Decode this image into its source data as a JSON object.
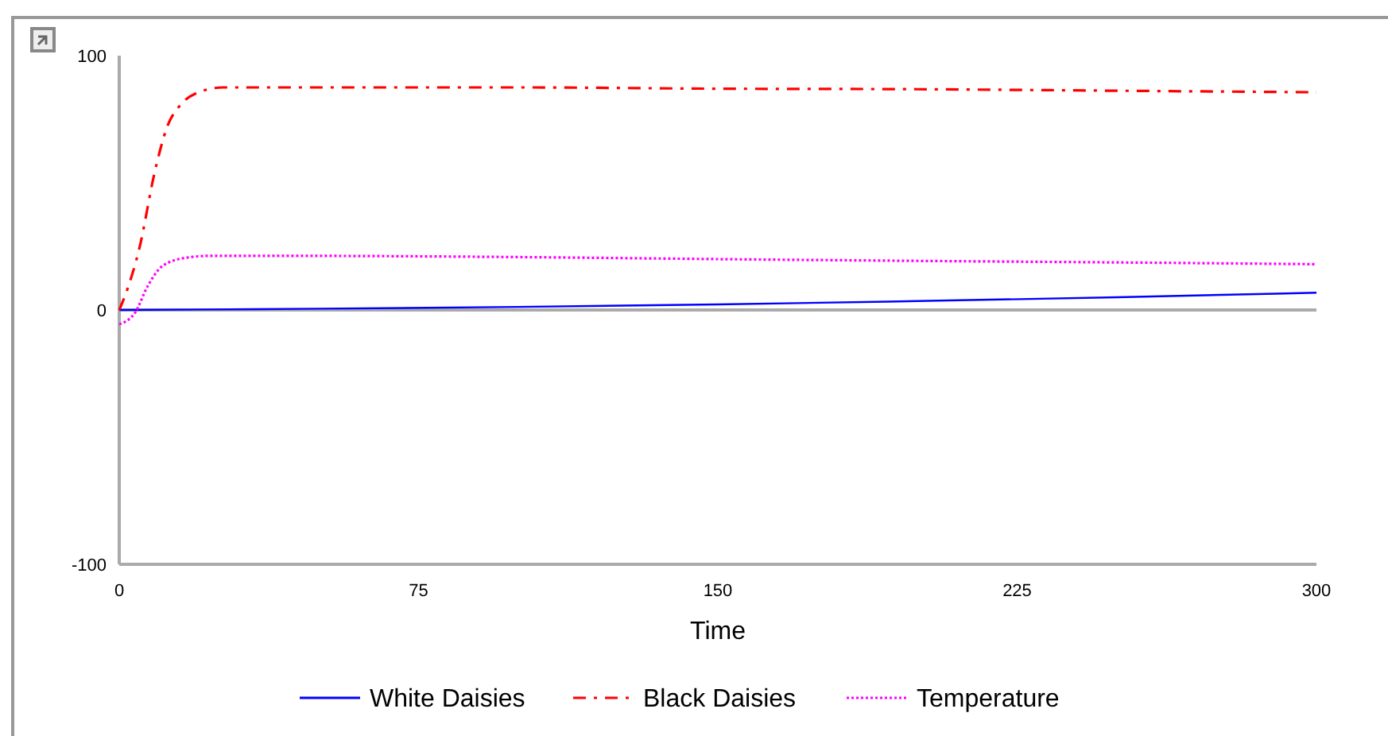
{
  "chart_data": {
    "type": "line",
    "xlabel": "Time",
    "xlim": [
      0,
      300
    ],
    "ylim": [
      -100,
      100
    ],
    "xticks": [
      0,
      75,
      150,
      225,
      300
    ],
    "yticks": [
      -100,
      0,
      100
    ],
    "grid": false,
    "legend": "bottom",
    "ref_lines": [
      {
        "axis": "y",
        "value": 0,
        "color": "#aaaaaa"
      }
    ],
    "series": [
      {
        "name": "White Daisies",
        "color": "#0000ff",
        "line_style": "solid",
        "x": [
          0,
          50,
          100,
          150,
          200,
          250,
          300
        ],
        "values": [
          0,
          0.5,
          1.2,
          2.2,
          3.5,
          5,
          6.8
        ]
      },
      {
        "name": "Black Daisies",
        "color": "#ff0000",
        "line_style": "dashdot",
        "x": [
          0,
          2,
          5,
          9,
          12,
          15,
          19,
          26,
          40,
          100,
          150,
          200,
          250,
          300
        ],
        "values": [
          0,
          8,
          24,
          55,
          72,
          80,
          85,
          87.5,
          87.5,
          87.5,
          87,
          86.8,
          86.2,
          85.6
        ]
      },
      {
        "name": "Temperature",
        "color": "#ff00ff",
        "line_style": "dotted",
        "x": [
          0,
          4,
          7,
          11,
          17,
          23,
          40,
          100,
          150,
          200,
          250,
          300
        ],
        "values": [
          -5.6,
          -1,
          9,
          17.5,
          20.6,
          21.3,
          21.3,
          20.8,
          20,
          19.3,
          18.7,
          18
        ]
      }
    ]
  }
}
